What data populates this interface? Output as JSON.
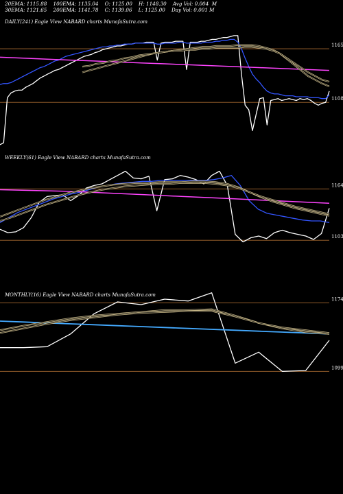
{
  "header": {
    "line1": "20EMA: 1115.88    100EMA: 1135.04    O: 1125.00    H: 1148.30    Avg Vol: 0.004  M",
    "line2": "30EMA: 1121.65    200EMA: 1141.78    C: 1139.06    L: 1125.00    Day Vol: 0.001 M"
  },
  "colors": {
    "background": "#000000",
    "price": "#ffffff",
    "ema_short": "#3355ff",
    "ema_pink": "#ff44ff",
    "ema_light_blue": "#44aaff",
    "ma_double": "#c8b888",
    "level_line": "#a86a30"
  },
  "chart_data": [
    {
      "type": "line",
      "title": "DAILY(241) Eagle  View  NABARD charts MunafaSutra.com",
      "levels": [
        1165,
        1108
      ],
      "level_labels": [
        "1165",
        "1108"
      ],
      "ylim": [
        1060,
        1195
      ],
      "series": [
        {
          "role": "price",
          "values": [
            1063,
            1065,
            1113,
            1118,
            1120,
            1121,
            1121,
            1124,
            1126,
            1128,
            1131,
            1134,
            1136,
            1138,
            1140,
            1142,
            1143,
            1145,
            1147,
            1149,
            1151,
            1153,
            1155,
            1157,
            1158,
            1159,
            1161,
            1162,
            1164,
            1165,
            1166,
            1167,
            1168,
            1168,
            1169,
            1170,
            1170,
            1171,
            1171,
            1171,
            1172,
            1172,
            1172,
            1153,
            1171,
            1172,
            1172,
            1172,
            1173,
            1173,
            1173,
            1143,
            1172,
            1172,
            1172,
            1173,
            1173,
            1174,
            1175,
            1175,
            1176,
            1177,
            1177,
            1178,
            1179,
            1179,
            1138,
            1105,
            1100,
            1078,
            1095,
            1112,
            1113,
            1084,
            1110,
            1111,
            1112,
            1110,
            1111,
            1112,
            1111,
            1110,
            1112,
            1111,
            1112,
            1110,
            1107,
            1105,
            1107,
            1108,
            1120
          ]
        },
        {
          "role": "ema_short",
          "values": [
            1127,
            1128,
            1128,
            1129,
            1131,
            1133,
            1135,
            1137,
            1139,
            1141,
            1143,
            1145,
            1146,
            1148,
            1150,
            1152,
            1153,
            1155,
            1157,
            1158,
            1159,
            1160,
            1161,
            1162,
            1163,
            1164,
            1165,
            1166,
            1167,
            1167,
            1168,
            1168,
            1169,
            1169,
            1170,
            1170,
            1170,
            1171,
            1171,
            1171,
            1171,
            1171,
            1171,
            1170,
            1170,
            1171,
            1171,
            1171,
            1171,
            1172,
            1172,
            1171,
            1171,
            1171,
            1171,
            1171,
            1172,
            1172,
            1172,
            1173,
            1173,
            1174,
            1174,
            1175,
            1175,
            1172,
            1165,
            1155,
            1146,
            1138,
            1133,
            1129,
            1124,
            1120,
            1118,
            1117,
            1117,
            1116,
            1115,
            1115,
            1115,
            1114,
            1114,
            1114,
            1114,
            1113,
            1113,
            1113,
            1112,
            1112,
            1116
          ]
        },
        {
          "role": "ma_pink",
          "values": [
            1156,
            1155,
            1154,
            1153,
            1152,
            1151,
            1150,
            1149,
            1148,
            1147,
            1146,
            1145,
            1144,
            1143,
            1142
          ]
        },
        {
          "role": "ma_double",
          "values": [
            1140,
            1142,
            1144,
            1146,
            1148,
            1150,
            1152,
            1154,
            1156,
            1158,
            1160,
            1161,
            1162,
            1163,
            1164,
            1165,
            1166,
            1167,
            1167,
            1168,
            1168,
            1168,
            1169,
            1169,
            1169,
            1168,
            1166,
            1164,
            1160,
            1154,
            1148,
            1142,
            1136,
            1132,
            1128,
            1125
          ]
        },
        {
          "role": "ma_double",
          "values": [
            1146,
            1147,
            1149,
            1150,
            1152,
            1153,
            1155,
            1156,
            1158,
            1159,
            1160,
            1161,
            1162,
            1163,
            1163,
            1164,
            1164,
            1165,
            1165,
            1166,
            1166,
            1166,
            1166,
            1167,
            1167,
            1166,
            1165,
            1163,
            1160,
            1155,
            1150,
            1145,
            1140,
            1136,
            1132,
            1130
          ]
        }
      ]
    },
    {
      "type": "line",
      "title": "WEEKLY(61) Eagle  View  NABARD charts MunafaSutra.com",
      "levels": [
        1164,
        1103
      ],
      "level_labels": [
        "1164",
        "1103"
      ],
      "ylim": [
        1095,
        1205
      ],
      "series": [
        {
          "role": "price",
          "values": [
            1116,
            1112,
            1113,
            1118,
            1130,
            1148,
            1155,
            1156,
            1157,
            1150,
            1156,
            1165,
            1168,
            1170,
            1175,
            1180,
            1185,
            1177,
            1176,
            1179,
            1138,
            1175,
            1176,
            1180,
            1178,
            1175,
            1170,
            1180,
            1185,
            1168,
            1110,
            1101,
            1106,
            1108,
            1105,
            1112,
            1115,
            1112,
            1110,
            1108,
            1104,
            1111,
            1141
          ]
        },
        {
          "role": "ema_short",
          "values": [
            1124,
            1130,
            1136,
            1140,
            1144,
            1148,
            1152,
            1155,
            1158,
            1160,
            1163,
            1166,
            1168,
            1170,
            1171,
            1172,
            1173,
            1173,
            1174,
            1174,
            1174,
            1174,
            1174,
            1174,
            1175,
            1177,
            1180,
            1168,
            1150,
            1140,
            1135,
            1133,
            1131,
            1129,
            1127,
            1126,
            1126,
            1124
          ]
        },
        {
          "role": "ma_pink",
          "values": [
            1163,
            1162,
            1161,
            1159,
            1157,
            1155,
            1153,
            1151,
            1149,
            1147
          ]
        },
        {
          "role": "ma_double",
          "values": [
            1131,
            1136,
            1141,
            1146,
            1151,
            1155,
            1159,
            1162,
            1165,
            1167,
            1169,
            1170,
            1171,
            1171,
            1172,
            1172,
            1172,
            1173,
            1173,
            1172,
            1170,
            1166,
            1160,
            1154,
            1149,
            1145,
            1141,
            1138,
            1135,
            1132
          ]
        },
        {
          "role": "ma_double",
          "values": [
            1126,
            1130,
            1135,
            1140,
            1145,
            1149,
            1153,
            1157,
            1160,
            1163,
            1165,
            1167,
            1168,
            1169,
            1170,
            1170,
            1171,
            1171,
            1171,
            1170,
            1168,
            1165,
            1160,
            1155,
            1151,
            1147,
            1143,
            1140,
            1137,
            1134
          ]
        }
      ]
    },
    {
      "type": "line",
      "title": "MONTHLY(16) Eagle  View  NABARD charts MunafaSutra.com",
      "levels": [
        1174,
        1099
      ],
      "level_labels": [
        "1174",
        "1099"
      ],
      "ylim": [
        1085,
        1190
      ],
      "series": [
        {
          "role": "price",
          "values": [
            1125,
            1125,
            1126,
            1140,
            1162,
            1175,
            1172,
            1178,
            1176,
            1185,
            1108,
            1120,
            1099,
            1100,
            1133
          ]
        },
        {
          "role": "ma_light_blue",
          "values": [
            1154,
            1153,
            1152,
            1151,
            1150,
            1149,
            1148,
            1147,
            1146,
            1145,
            1144,
            1143,
            1142,
            1141,
            1140
          ]
        },
        {
          "role": "ma_double",
          "values": [
            1144,
            1149,
            1153,
            1157,
            1160,
            1162,
            1164,
            1166,
            1166,
            1167,
            1160,
            1152,
            1146,
            1142,
            1140
          ]
        },
        {
          "role": "ma_double",
          "values": [
            1141,
            1146,
            1151,
            1155,
            1158,
            1161,
            1163,
            1164,
            1165,
            1165,
            1159,
            1152,
            1147,
            1144,
            1141
          ]
        }
      ]
    }
  ]
}
